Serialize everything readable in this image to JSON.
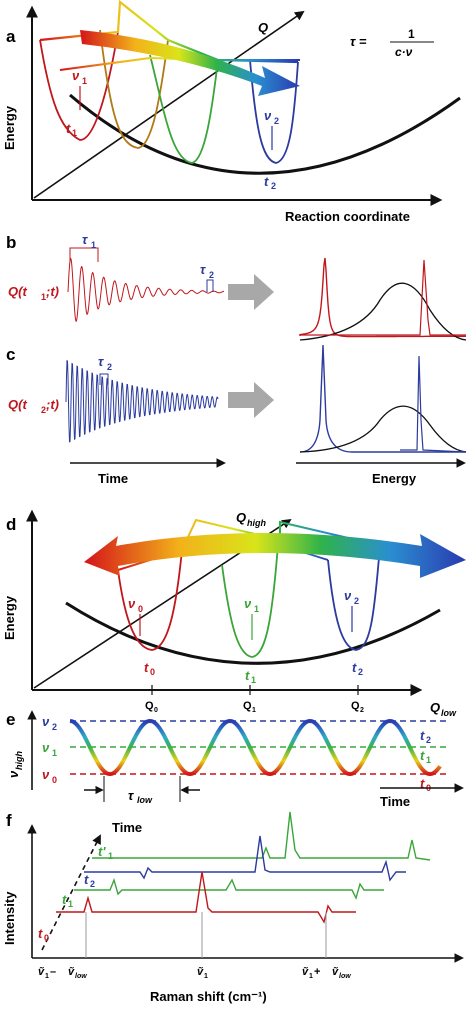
{
  "panels": {
    "a": {
      "letter": "a",
      "ylabel": "Energy",
      "xlabel": "Reaction coordinate",
      "q_label": "Q",
      "formula_lhs": "τ =",
      "formula_num": "1",
      "formula_den": "c·ν",
      "nu1": "ν",
      "nu1_sub": "1",
      "nu2": "ν",
      "nu2_sub": "2",
      "t1": "t",
      "t1_sub": "1",
      "t2": "t",
      "t2_sub": "2"
    },
    "b": {
      "letter": "b",
      "signal_label": "Q(t",
      "signal_sub": "1",
      "signal_tail": ";t)",
      "tau1": "τ",
      "tau1_sub": "1",
      "tau2": "τ",
      "tau2_sub": "2"
    },
    "c": {
      "letter": "c",
      "signal_label": "Q(t",
      "signal_sub": "2",
      "signal_tail": ";t)",
      "tau2": "τ",
      "tau2_sub": "2",
      "xlabel_left": "Time",
      "xlabel_right": "Energy"
    },
    "d": {
      "letter": "d",
      "ylabel": "Energy",
      "q_high": "Q",
      "q_high_sub": "high",
      "q_low": "Q",
      "q_low_sub": "low",
      "q0": "Q",
      "q0_sub": "0",
      "q1": "Q",
      "q1_sub": "1",
      "q2": "Q",
      "q2_sub": "2",
      "nu0": "ν",
      "nu0_sub": "0",
      "nu1": "ν",
      "nu1_sub": "1",
      "nu2": "ν",
      "nu2_sub": "2",
      "t0": "t",
      "t0_sub": "0",
      "t1": "t",
      "t1_sub": "1",
      "t2": "t",
      "t2_sub": "2"
    },
    "e": {
      "letter": "e",
      "ylabel": "ν",
      "ylabel_sub": "high",
      "nu2": "ν",
      "nu2_sub": "2",
      "nu1": "ν",
      "nu1_sub": "1",
      "nu0": "ν",
      "nu0_sub": "0",
      "t2": "t",
      "t2_sub": "2",
      "t1": "t",
      "t1_sub": "1",
      "t0": "t",
      "t0_sub": "0",
      "tau_low": "τ",
      "tau_low_sub": "low",
      "xlabel": "Time"
    },
    "f": {
      "letter": "f",
      "ylabel": "Intensity",
      "time_label": "Time",
      "t1p": "t'",
      "t1p_sub": "1",
      "t2": "t",
      "t2_sub": "2",
      "t1": "t",
      "t1_sub": "1",
      "t0": "t",
      "t0_sub": "0",
      "tick_left_a": "ṽ",
      "tick_left_a_sub": "1",
      "tick_left_op": " – ",
      "tick_left_b": "ṽ",
      "tick_left_b_sub": "low",
      "tick_mid": "ṽ",
      "tick_mid_sub": "1",
      "tick_right_a": "ṽ",
      "tick_right_a_sub": "1",
      "tick_right_op": " + ",
      "tick_right_b": "ṽ",
      "tick_right_b_sub": "low",
      "xlabel": "Raman shift (cm⁻¹)"
    }
  },
  "colors": {
    "red": "#c0171d",
    "blue": "#2b3b9e",
    "green": "#3aa63a",
    "olive": "#9a9a1a",
    "black": "#111111",
    "gray": "#a0a0a0"
  }
}
